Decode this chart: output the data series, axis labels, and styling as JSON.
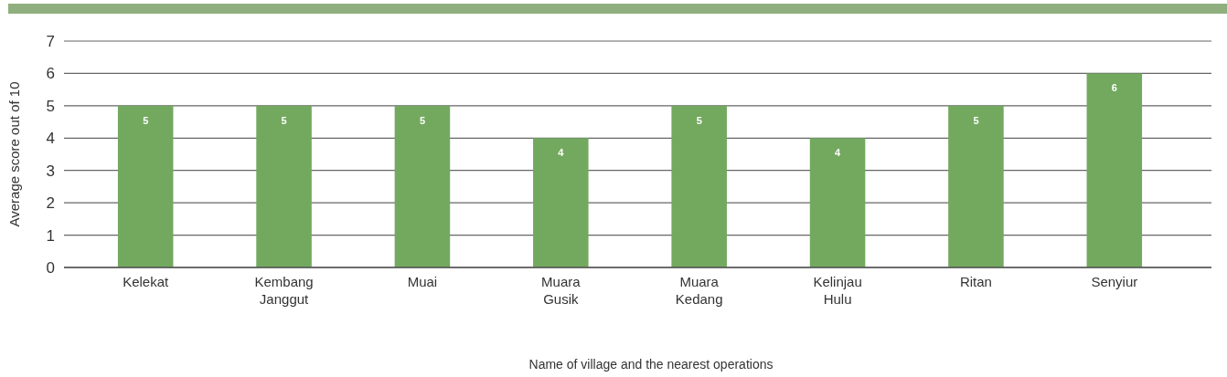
{
  "chart_data": {
    "type": "bar",
    "xlabel": "Name of village and the nearest operations",
    "ylabel": "Average score out of 10",
    "categories": [
      "Kelekat",
      "Kembang Janggut",
      "Muai",
      "Muara Gusik",
      "Muara Kedang",
      "Kelinjau Hulu",
      "Ritan",
      "Senyiur"
    ],
    "values": [
      5,
      5,
      5,
      4,
      5,
      4,
      5,
      6
    ],
    "color": "#72a95f",
    "ylim": [
      0,
      7
    ],
    "yticks": [
      0,
      1,
      2,
      3,
      4,
      5,
      6,
      7
    ],
    "grid": "y",
    "data_labels": true
  }
}
